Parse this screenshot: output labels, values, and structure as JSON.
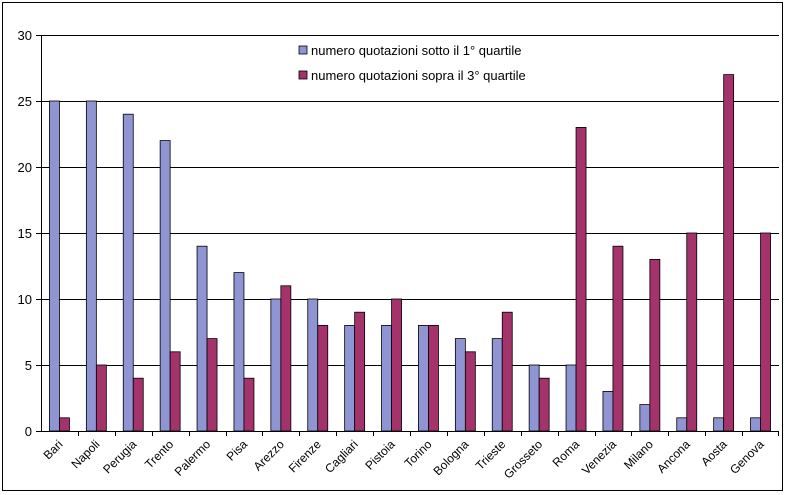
{
  "chart_data": {
    "type": "bar",
    "title": "",
    "xlabel": "",
    "ylabel": "",
    "ylim": [
      0,
      30
    ],
    "yticks": [
      0,
      5,
      10,
      15,
      20,
      25,
      30
    ],
    "grid": "horizontal",
    "legend_position": "top-center",
    "categories": [
      "Bari",
      "Napoli",
      "Perugia",
      "Trento",
      "Palermo",
      "Pisa",
      "Arezzo",
      "Firenze",
      "Cagliari",
      "Pistoia",
      "Torino",
      "Bologna",
      "Trieste",
      "Grosseto",
      "Roma",
      "Venezia",
      "Milano",
      "Ancona",
      "Aosta",
      "Genova"
    ],
    "series": [
      {
        "name": "numero quotazioni sotto il 1° quartile",
        "color": "#8f95d2",
        "values": [
          25,
          25,
          24,
          22,
          14,
          12,
          10,
          10,
          8,
          8,
          8,
          7,
          7,
          5,
          5,
          3,
          2,
          1,
          1,
          1
        ]
      },
      {
        "name": "numero quotazioni sopra il 3° quartile",
        "color": "#a3336a",
        "values": [
          1,
          5,
          4,
          6,
          7,
          4,
          11,
          8,
          9,
          10,
          8,
          6,
          9,
          4,
          23,
          14,
          13,
          15,
          27,
          15
        ]
      }
    ]
  }
}
